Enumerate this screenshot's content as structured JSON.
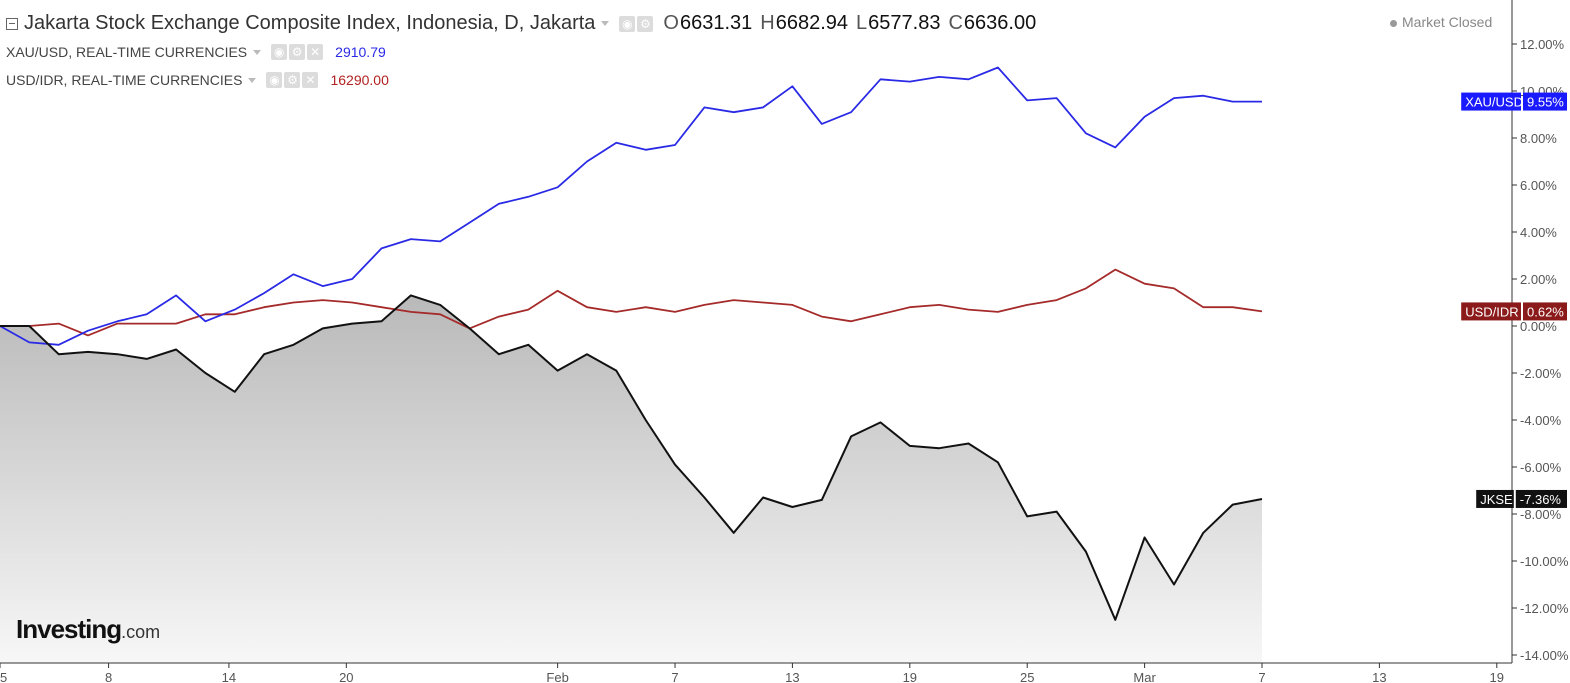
{
  "header": {
    "title": "Jakarta Stock Exchange Composite Index, Indonesia, D, Jakarta",
    "ohlc": [
      {
        "key": "O",
        "value": "6631.31"
      },
      {
        "key": "H",
        "value": "6682.94"
      },
      {
        "key": "L",
        "value": "6577.83"
      },
      {
        "key": "C",
        "value": "6636.00"
      }
    ],
    "market_status": "Market Closed"
  },
  "legend": [
    {
      "label": "XAU/USD, REAL-TIME CURRENCIES",
      "value": "2910.79",
      "color": "#2a2ae6"
    },
    {
      "label": "USD/IDR, REAL-TIME CURRENCIES",
      "value": "16290.00",
      "color": "#b22222"
    }
  ],
  "branding": {
    "bold": "Investing",
    "suffix": ".com"
  },
  "chart_data": {
    "type": "line",
    "y_unit": "%",
    "ylim": [
      -14,
      12
    ],
    "y_ticks": [
      "12.00%",
      "10.00%",
      "8.00%",
      "6.00%",
      "4.00%",
      "2.00%",
      "0.00%",
      "-2.00%",
      "-4.00%",
      "-6.00%",
      "-8.00%",
      "-10.00%",
      "-12.00%",
      "-14.00%"
    ],
    "x_ticks": [
      {
        "label": "5",
        "i": 0
      },
      {
        "label": "8",
        "i": 3.7
      },
      {
        "label": "14",
        "i": 7.8
      },
      {
        "label": "20",
        "i": 11.8
      },
      {
        "label": "Feb",
        "i": 19
      },
      {
        "label": "7",
        "i": 23
      },
      {
        "label": "13",
        "i": 27
      },
      {
        "label": "19",
        "i": 31
      },
      {
        "label": "25",
        "i": 35
      },
      {
        "label": "Mar",
        "i": 39
      },
      {
        "label": "7",
        "i": 43
      },
      {
        "label": "13",
        "i": 47
      },
      {
        "label": "19",
        "i": 51
      }
    ],
    "x_index_max": 52,
    "series": [
      {
        "name": "XAU/USD",
        "badge": "XAU/USD",
        "last_label": "9.55%",
        "color": "#2a2ae6",
        "values": [
          0,
          -0.7,
          -0.8,
          -0.2,
          0.2,
          0.5,
          1.3,
          0.2,
          0.7,
          1.4,
          2.2,
          1.7,
          2.0,
          3.3,
          3.7,
          3.6,
          4.4,
          5.2,
          5.5,
          5.9,
          7.0,
          7.8,
          7.5,
          7.7,
          9.3,
          9.1,
          9.3,
          10.2,
          8.6,
          9.1,
          10.5,
          10.4,
          10.6,
          10.5,
          11.0,
          9.6,
          9.7,
          8.2,
          7.6,
          8.9,
          9.7,
          9.8,
          9.55,
          9.55
        ]
      },
      {
        "name": "USD/IDR",
        "badge": "USD/IDR",
        "last_label": "0.62%",
        "color": "#a52a2a",
        "values": [
          0,
          0,
          0.1,
          -0.4,
          0.1,
          0.1,
          0.1,
          0.5,
          0.5,
          0.8,
          1.0,
          1.1,
          1.0,
          0.8,
          0.6,
          0.5,
          -0.1,
          0.4,
          0.7,
          1.5,
          0.8,
          0.6,
          0.8,
          0.6,
          0.9,
          1.1,
          1.0,
          0.9,
          0.4,
          0.2,
          0.5,
          0.8,
          0.9,
          0.7,
          0.6,
          0.9,
          1.1,
          1.6,
          2.4,
          1.8,
          1.6,
          0.8,
          0.8,
          0.62
        ]
      },
      {
        "name": "JKSE",
        "badge": "JKSE",
        "last_label": "-7.36%",
        "color": "#111111",
        "values": [
          0,
          0,
          -1.2,
          -1.1,
          -1.2,
          -1.4,
          -1.0,
          -2.0,
          -2.8,
          -1.2,
          -0.8,
          -0.1,
          0.1,
          0.2,
          1.3,
          0.9,
          -0.1,
          -1.2,
          -0.8,
          -1.9,
          -1.2,
          -1.9,
          -4.0,
          -5.9,
          -7.3,
          -8.8,
          -7.3,
          -7.7,
          -7.4,
          -4.7,
          -4.1,
          -5.1,
          -5.2,
          -5.0,
          -5.8,
          -8.1,
          -7.9,
          -9.6,
          -12.5,
          -9.0,
          -11.0,
          -8.8,
          -7.6,
          -7.36
        ]
      }
    ]
  }
}
